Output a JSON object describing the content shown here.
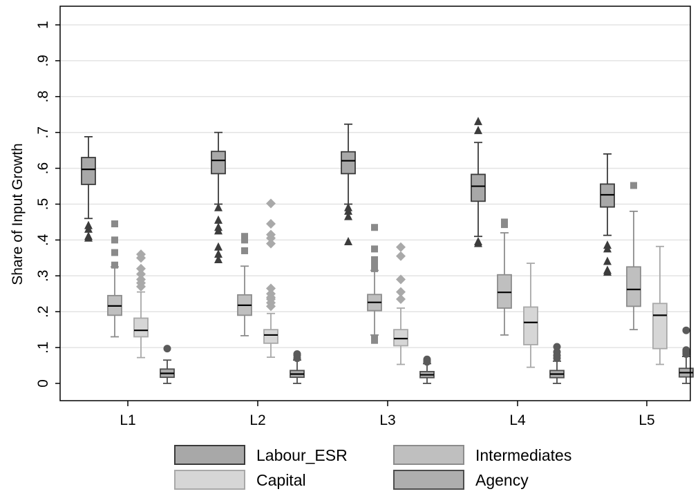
{
  "chart_data": {
    "type": "box",
    "title": "",
    "xlabel": "",
    "ylabel": "Share of Input Growth",
    "ylim": [
      0,
      1
    ],
    "y_ticks": [
      {
        "value": 0,
        "label": "0"
      },
      {
        "value": 0.1,
        "label": ".1"
      },
      {
        "value": 0.2,
        "label": ".2"
      },
      {
        "value": 0.3,
        "label": ".3"
      },
      {
        "value": 0.4,
        "label": ".4"
      },
      {
        "value": 0.5,
        "label": ".5"
      },
      {
        "value": 0.6,
        "label": ".6"
      },
      {
        "value": 0.7,
        "label": ".7"
      },
      {
        "value": 0.8,
        "label": ".8"
      },
      {
        "value": 0.9,
        "label": ".9"
      },
      {
        "value": 1,
        "label": "1"
      }
    ],
    "grid": "horizontal",
    "legend_position": "bottom",
    "categories": [
      "L1",
      "L2",
      "L3",
      "L4",
      "L5"
    ],
    "series": [
      {
        "name": "Labour_ESR",
        "fill": "#a8a8a8",
        "stroke": "#3a3a3a",
        "marker": "triangle",
        "marker_color": "#3c3c3c",
        "boxes": [
          {
            "whisker_low": 0.46,
            "q1": 0.555,
            "median": 0.597,
            "q3": 0.63,
            "whisker_high": 0.688,
            "outliers": [
              0.44,
              0.43,
              0.41,
              0.405
            ]
          },
          {
            "whisker_low": 0.5,
            "q1": 0.585,
            "median": 0.622,
            "q3": 0.647,
            "whisker_high": 0.7,
            "outliers": [
              0.49,
              0.455,
              0.435,
              0.425,
              0.38,
              0.36,
              0.345
            ]
          },
          {
            "whisker_low": 0.5,
            "q1": 0.585,
            "median": 0.621,
            "q3": 0.646,
            "whisker_high": 0.723,
            "outliers": [
              0.49,
              0.48,
              0.465,
              0.395
            ]
          },
          {
            "whisker_low": 0.41,
            "q1": 0.508,
            "median": 0.55,
            "q3": 0.583,
            "whisker_high": 0.672,
            "outliers": [
              0.73,
              0.705,
              0.395,
              0.39
            ]
          },
          {
            "whisker_low": 0.413,
            "q1": 0.492,
            "median": 0.526,
            "q3": 0.556,
            "whisker_high": 0.64,
            "outliers": [
              0.385,
              0.375,
              0.34,
              0.315,
              0.31
            ]
          }
        ]
      },
      {
        "name": "Intermediates",
        "fill": "#bfbfbf",
        "stroke": "#8c8c8c",
        "marker": "square",
        "marker_color": "#8a8a8a",
        "boxes": [
          {
            "whisker_low": 0.13,
            "q1": 0.19,
            "median": 0.216,
            "q3": 0.245,
            "whisker_high": 0.325,
            "outliers": [
              0.445,
              0.4,
              0.365,
              0.33
            ]
          },
          {
            "whisker_low": 0.133,
            "q1": 0.19,
            "median": 0.218,
            "q3": 0.247,
            "whisker_high": 0.327,
            "outliers": [
              0.41,
              0.4,
              0.37
            ]
          },
          {
            "whisker_low": 0.135,
            "q1": 0.203,
            "median": 0.226,
            "q3": 0.248,
            "whisker_high": 0.315,
            "outliers": [
              0.435,
              0.375,
              0.345,
              0.335,
              0.32,
              0.125,
              0.12
            ]
          },
          {
            "whisker_low": 0.135,
            "q1": 0.21,
            "median": 0.254,
            "q3": 0.303,
            "whisker_high": 0.42,
            "outliers": [
              0.45,
              0.443
            ]
          },
          {
            "whisker_low": 0.15,
            "q1": 0.215,
            "median": 0.262,
            "q3": 0.325,
            "whisker_high": 0.48,
            "outliers": [
              0.552
            ]
          }
        ]
      },
      {
        "name": "Capital",
        "fill": "#d6d6d6",
        "stroke": "#a8a8a8",
        "marker": "diamond",
        "marker_color": "#a9a9a9",
        "boxes": [
          {
            "whisker_low": 0.072,
            "q1": 0.13,
            "median": 0.148,
            "q3": 0.182,
            "whisker_high": 0.255,
            "outliers": [
              0.36,
              0.35,
              0.32,
              0.305,
              0.29,
              0.28,
              0.27
            ]
          },
          {
            "whisker_low": 0.073,
            "q1": 0.112,
            "median": 0.135,
            "q3": 0.15,
            "whisker_high": 0.195,
            "outliers": [
              0.502,
              0.445,
              0.415,
              0.405,
              0.39,
              0.265,
              0.25,
              0.24,
              0.235,
              0.225,
              0.215
            ]
          },
          {
            "whisker_low": 0.053,
            "q1": 0.105,
            "median": 0.125,
            "q3": 0.15,
            "whisker_high": 0.21,
            "outliers": [
              0.38,
              0.355,
              0.29,
              0.255,
              0.235
            ]
          },
          {
            "whisker_low": 0.045,
            "q1": 0.108,
            "median": 0.17,
            "q3": 0.213,
            "whisker_high": 0.335,
            "outliers": []
          },
          {
            "whisker_low": 0.053,
            "q1": 0.097,
            "median": 0.19,
            "q3": 0.223,
            "whisker_high": 0.382,
            "outliers": []
          }
        ]
      },
      {
        "name": "Agency",
        "fill": "#aeaeae",
        "stroke": "#4d4d4d",
        "marker": "circle",
        "marker_color": "#5a5a5a",
        "boxes": [
          {
            "whisker_low": 0.0,
            "q1": 0.017,
            "median": 0.028,
            "q3": 0.04,
            "whisker_high": 0.065,
            "outliers": [
              0.097
            ]
          },
          {
            "whisker_low": 0.0,
            "q1": 0.017,
            "median": 0.026,
            "q3": 0.036,
            "whisker_high": 0.065,
            "outliers": [
              0.082,
              0.078,
              0.07
            ]
          },
          {
            "whisker_low": 0.0,
            "q1": 0.016,
            "median": 0.024,
            "q3": 0.033,
            "whisker_high": 0.055,
            "outliers": [
              0.067,
              0.063,
              0.06
            ]
          },
          {
            "whisker_low": 0.0,
            "q1": 0.016,
            "median": 0.026,
            "q3": 0.036,
            "whisker_high": 0.062,
            "outliers": [
              0.102,
              0.088,
              0.078,
              0.07
            ]
          },
          {
            "whisker_low": 0.0,
            "q1": 0.018,
            "median": 0.03,
            "q3": 0.042,
            "whisker_high": 0.075,
            "outliers": [
              0.148,
              0.093,
              0.088,
              0.082
            ]
          }
        ]
      }
    ],
    "legend": [
      {
        "series": "Labour_ESR",
        "label": "Labour_ESR"
      },
      {
        "series": "Intermediates",
        "label": "Intermediates"
      },
      {
        "series": "Capital",
        "label": "Capital"
      },
      {
        "series": "Agency",
        "label": "Agency"
      }
    ]
  }
}
